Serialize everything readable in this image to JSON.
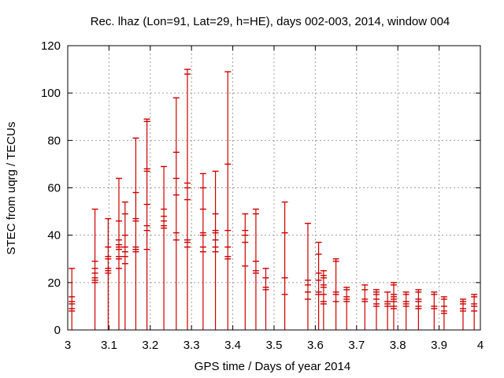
{
  "chart_data": {
    "type": "scatter",
    "title": "Rec. lhaz (Lon=91, Lat=29, h=HE), days 002-003, 2014, window 004",
    "xlabel": "GPS time / Days of year 2014",
    "ylabel": "STEC from uqrg / TECUs",
    "xlim": [
      3.0,
      4.0
    ],
    "ylim": [
      0,
      120
    ],
    "xticks": [
      3,
      3.1,
      3.2,
      3.3,
      3.4,
      3.5,
      3.6,
      3.7,
      3.8,
      3.9,
      4
    ],
    "xtick_labels": [
      "3",
      "3.1",
      "3.2",
      "3.3",
      "3.4",
      "3.5",
      "3.6",
      "3.7",
      "3.8",
      "3.9",
      "4"
    ],
    "yticks": [
      0,
      20,
      40,
      60,
      80,
      100,
      120
    ],
    "ytick_labels": [
      "0",
      "20",
      "40",
      "60",
      "80",
      "100",
      "120"
    ],
    "grid": true,
    "color": "#cc0000",
    "epochs": [
      {
        "x": 3.01,
        "values": [
          26,
          14,
          12,
          11,
          9,
          8
        ]
      },
      {
        "x": 3.066,
        "values": [
          51,
          29,
          26,
          24,
          22,
          21,
          20
        ]
      },
      {
        "x": 3.098,
        "values": [
          47,
          35,
          31,
          30,
          26,
          25,
          24
        ]
      },
      {
        "x": 3.124,
        "values": [
          64,
          46,
          38,
          36,
          35,
          34,
          31,
          30,
          26
        ]
      },
      {
        "x": 3.139,
        "values": [
          54,
          49,
          40,
          35,
          33,
          31,
          28
        ]
      },
      {
        "x": 3.165,
        "values": [
          81,
          58,
          47,
          46,
          35,
          34,
          33
        ]
      },
      {
        "x": 3.192,
        "values": [
          89,
          88,
          68,
          67,
          53,
          44,
          42,
          34
        ]
      },
      {
        "x": 3.233,
        "values": [
          69,
          51,
          48,
          46,
          44,
          43
        ]
      },
      {
        "x": 3.263,
        "values": [
          98,
          75,
          64,
          57,
          41,
          38
        ]
      },
      {
        "x": 3.29,
        "values": [
          110,
          108,
          62,
          60,
          55,
          38,
          37,
          35
        ]
      },
      {
        "x": 3.328,
        "values": [
          66,
          60,
          51,
          41,
          40,
          35,
          33
        ]
      },
      {
        "x": 3.358,
        "values": [
          67,
          49,
          42,
          41,
          38,
          35,
          33
        ]
      },
      {
        "x": 3.388,
        "values": [
          109,
          70,
          42,
          35,
          31,
          30
        ]
      },
      {
        "x": 3.43,
        "values": [
          49,
          42,
          40,
          37,
          27
        ]
      },
      {
        "x": 3.456,
        "values": [
          51,
          49,
          29,
          25,
          24
        ]
      },
      {
        "x": 3.48,
        "values": [
          26,
          22,
          18,
          17
        ]
      },
      {
        "x": 3.526,
        "values": [
          54,
          41,
          22,
          15
        ]
      },
      {
        "x": 3.582,
        "values": [
          45,
          21,
          19,
          16,
          13
        ]
      },
      {
        "x": 3.608,
        "values": [
          37,
          32,
          24,
          21,
          16,
          15
        ]
      },
      {
        "x": 3.62,
        "values": [
          25,
          23,
          22,
          19,
          18,
          15,
          12,
          11
        ]
      },
      {
        "x": 3.65,
        "values": [
          30,
          29,
          16,
          15,
          12
        ]
      },
      {
        "x": 3.676,
        "values": [
          18,
          17,
          14,
          13,
          12
        ]
      },
      {
        "x": 3.72,
        "values": [
          19,
          17,
          13,
          12
        ]
      },
      {
        "x": 3.748,
        "values": [
          17,
          16,
          15,
          13,
          11,
          10
        ]
      },
      {
        "x": 3.775,
        "values": [
          16,
          12,
          11,
          10
        ]
      },
      {
        "x": 3.79,
        "values": [
          20,
          19,
          15,
          14,
          13,
          12,
          10,
          9
        ]
      },
      {
        "x": 3.82,
        "values": [
          16,
          15,
          12,
          11,
          10
        ]
      },
      {
        "x": 3.85,
        "values": [
          17,
          16,
          13,
          12,
          10,
          9
        ]
      },
      {
        "x": 3.888,
        "values": [
          16,
          15,
          10,
          9
        ]
      },
      {
        "x": 3.912,
        "values": [
          14,
          13,
          10,
          8,
          7
        ]
      },
      {
        "x": 3.958,
        "values": [
          13,
          12,
          11,
          9,
          8
        ]
      },
      {
        "x": 3.985,
        "values": [
          15,
          14,
          11,
          10,
          8
        ]
      }
    ]
  }
}
